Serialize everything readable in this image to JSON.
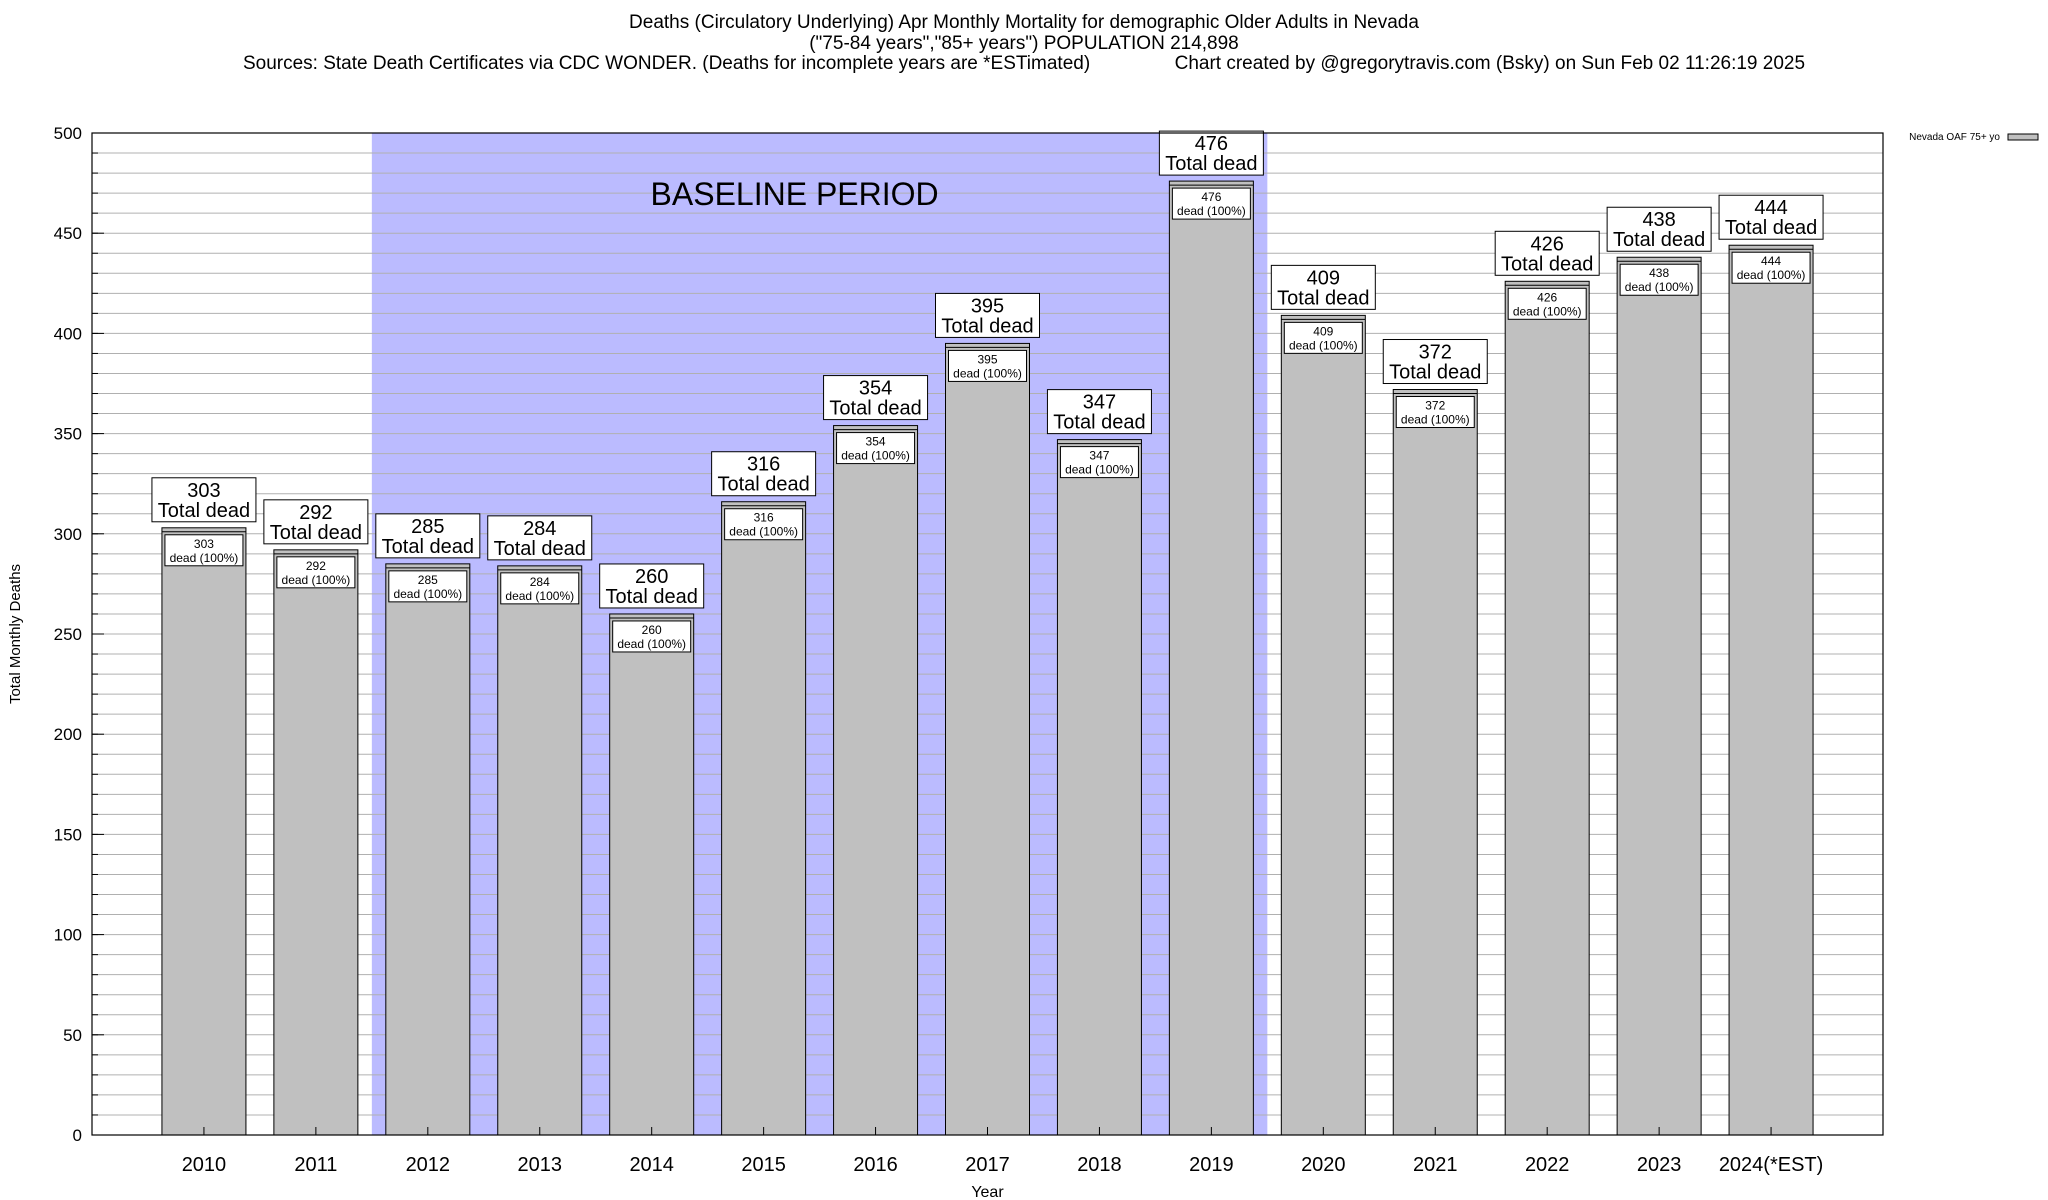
{
  "titles": {
    "line1": "Deaths (Circulatory Underlying) Apr Monthly Mortality for demographic Older Adults in Nevada",
    "line2": "(\"75-84 years\",\"85+ years\") POPULATION 214,898",
    "line3": "Sources: State Death Certificates via CDC WONDER. (Deaths for incomplete years are *ESTimated)                Chart created by @gregorytravis.com (Bsky) on Sun Feb 02 11:26:19 2025"
  },
  "chart_data": {
    "type": "bar",
    "xlabel": "Year",
    "ylabel": "Total Monthly Deaths",
    "ylim": [
      0,
      500
    ],
    "yticks": [
      0,
      50,
      100,
      150,
      200,
      250,
      300,
      350,
      400,
      450,
      500
    ],
    "minor_tick_step": 10,
    "grid": true,
    "categories": [
      "2010",
      "2011",
      "2012",
      "2013",
      "2014",
      "2015",
      "2016",
      "2017",
      "2018",
      "2019",
      "2020",
      "2021",
      "2022",
      "2023",
      "2024(*EST)"
    ],
    "series": [
      {
        "name": "Nevada OAF 75+ yo",
        "values": [
          303,
          292,
          285,
          284,
          260,
          316,
          354,
          395,
          347,
          476,
          409,
          372,
          426,
          438,
          444
        ]
      }
    ],
    "total_label_suffix": "Total dead",
    "inner_label_suffix": "dead (100%)",
    "baseline": {
      "label": "BASELINE PERIOD",
      "start": "2012",
      "end": "2019"
    },
    "legend_position": "top-right",
    "colors": {
      "bar": "#c0c0c0",
      "baseline": "#bbbbff",
      "grid": "#b0b0b0",
      "axis": "#000000"
    }
  }
}
